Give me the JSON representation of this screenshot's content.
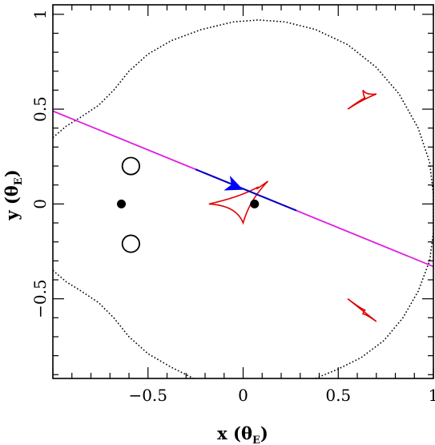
{
  "chart_data": {
    "type": "scatter",
    "title": "",
    "xlabel": {
      "main": "x (θ",
      "sub": "E",
      "close": ")"
    },
    "ylabel": {
      "main": "y (θ",
      "sub": "E",
      "close": ")"
    },
    "xlim": [
      -1.0,
      1.0
    ],
    "ylim": [
      -0.92,
      1.05
    ],
    "grid": false,
    "x_ticks": [
      {
        "value": -0.5,
        "label": "−0.5"
      },
      {
        "value": 0,
        "label": "0"
      },
      {
        "value": 0.5,
        "label": "0.5"
      },
      {
        "value": 1,
        "label": "1"
      }
    ],
    "y_ticks": [
      {
        "value": -0.5,
        "label": "−0.5"
      },
      {
        "value": 0,
        "label": "0"
      },
      {
        "value": 0.5,
        "label": "0.5"
      },
      {
        "value": 1,
        "label": "1"
      }
    ],
    "lenses": [
      {
        "x": -0.64,
        "y": 0.0
      },
      {
        "x": 0.06,
        "y": 0.0
      }
    ],
    "source_trajectory": {
      "color": "#e020e0",
      "highlight_color": "#0000c0",
      "start": [
        -1.0,
        0.49
      ],
      "end": [
        1.0,
        -0.33
      ],
      "highlight_start_x": -0.25,
      "highlight_end_x": 0.28
    },
    "arrow": {
      "at": [
        0.0,
        0.075
      ],
      "color": "#0000ff"
    },
    "critical_curves": {
      "color": "#000000",
      "outer": [
        [
          -1.0,
          0.35
        ],
        [
          -0.93,
          0.41
        ],
        [
          -0.85,
          0.46
        ],
        [
          -0.76,
          0.52
        ],
        [
          -0.68,
          0.6
        ],
        [
          -0.6,
          0.7
        ],
        [
          -0.5,
          0.79
        ],
        [
          -0.38,
          0.86
        ],
        [
          -0.22,
          0.92
        ],
        [
          -0.05,
          0.96
        ],
        [
          0.08,
          0.97
        ],
        [
          0.22,
          0.96
        ],
        [
          0.38,
          0.92
        ],
        [
          0.55,
          0.84
        ],
        [
          0.7,
          0.72
        ],
        [
          0.82,
          0.58
        ],
        [
          0.92,
          0.4
        ],
        [
          0.98,
          0.22
        ],
        [
          1.0,
          0.05
        ],
        [
          1.0,
          -0.15
        ],
        [
          0.98,
          -0.3
        ],
        [
          0.92,
          -0.46
        ],
        [
          0.84,
          -0.6
        ],
        [
          0.74,
          -0.72
        ],
        [
          0.62,
          -0.81
        ],
        [
          0.5,
          -0.87
        ],
        [
          0.38,
          -0.92
        ]
      ],
      "outer_lower_left": [
        [
          -1.0,
          -0.35
        ],
        [
          -0.93,
          -0.41
        ],
        [
          -0.85,
          -0.46
        ],
        [
          -0.76,
          -0.52
        ],
        [
          -0.68,
          -0.6
        ],
        [
          -0.6,
          -0.7
        ],
        [
          -0.5,
          -0.79
        ],
        [
          -0.38,
          -0.86
        ],
        [
          -0.26,
          -0.92
        ]
      ],
      "small_loops": [
        {
          "x": -0.59,
          "y": 0.2,
          "rx": 0.045,
          "ry": 0.045
        },
        {
          "x": -0.59,
          "y": -0.21,
          "rx": 0.045,
          "ry": 0.045
        }
      ]
    },
    "caustics": {
      "color": "#e00000",
      "central": [
        [
          -0.18,
          0.0
        ],
        [
          0.08,
          0.09
        ],
        [
          0.13,
          0.12
        ],
        [
          0.0,
          -0.1
        ]
      ],
      "upper": [
        [
          0.64,
          0.56
        ],
        [
          0.55,
          0.5
        ],
        [
          0.7,
          0.58
        ],
        [
          0.63,
          0.6
        ]
      ],
      "lower": [
        [
          0.64,
          -0.56
        ],
        [
          0.55,
          -0.5
        ],
        [
          0.7,
          -0.62
        ],
        [
          0.63,
          -0.58
        ]
      ]
    }
  }
}
